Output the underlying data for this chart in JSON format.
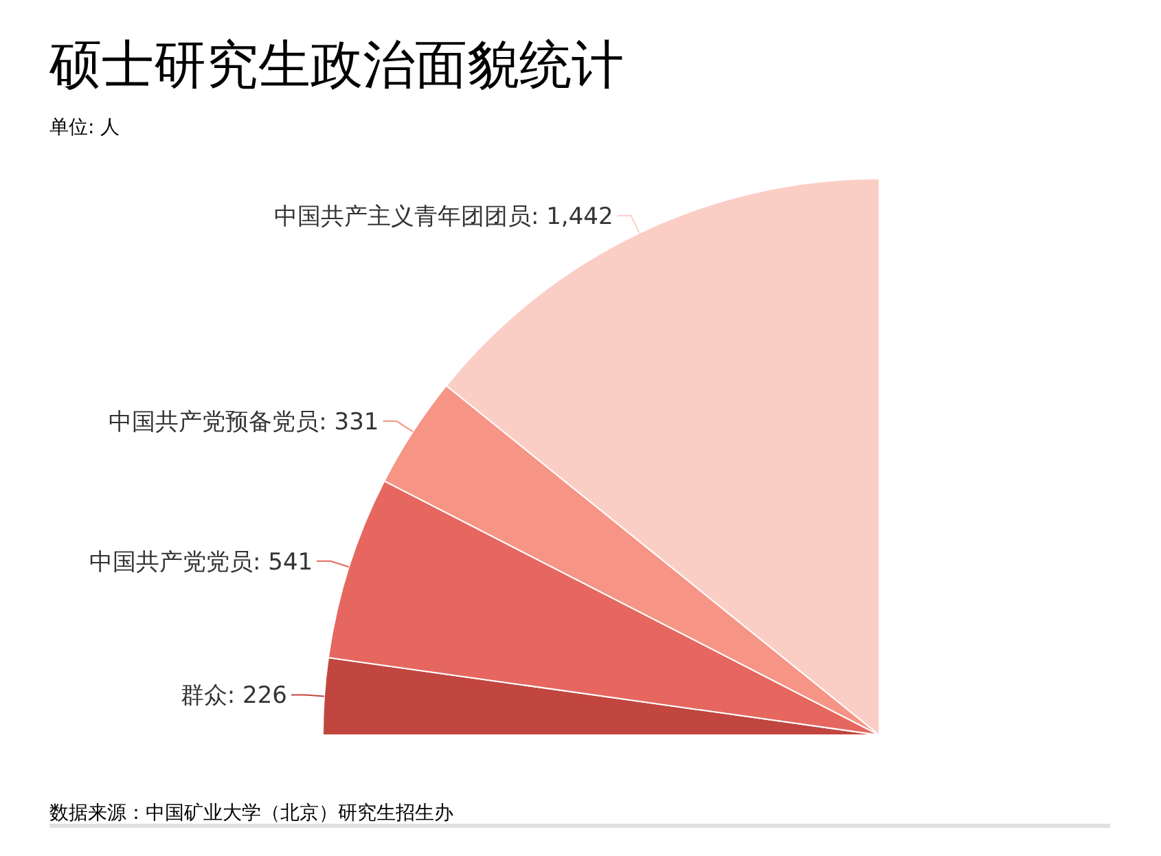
{
  "chart_data": {
    "type": "pie",
    "title": "硕士研究生政治面貌统计",
    "subtitle": "单位: 人",
    "categories": [
      "群众",
      "中国共产党党员",
      "中国共产党预备党员",
      "中国共产主义青年团团员"
    ],
    "values": [
      226,
      541,
      331,
      1442
    ],
    "value_labels": [
      "226",
      "541",
      "331",
      "1,442"
    ],
    "colors": [
      "#c0463f",
      "#e5675f",
      "#f69585",
      "#fbcec5"
    ],
    "annotations": [
      "数据来源：中国矿业大学（北京）研究生招生办"
    ]
  }
}
